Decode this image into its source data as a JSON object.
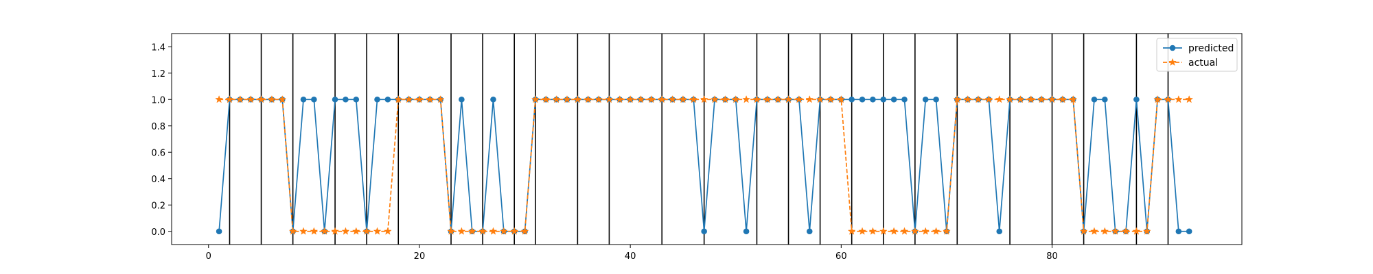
{
  "chart_data": {
    "type": "line",
    "title": "",
    "xlabel": "",
    "ylabel": "",
    "xlim": [
      -3.5,
      98
    ],
    "ylim": [
      -0.1,
      1.5
    ],
    "xticks": [
      0,
      20,
      40,
      60,
      80
    ],
    "xtick_labels": [
      "0",
      "20",
      "40",
      "60",
      "80"
    ],
    "yticks": [
      0.0,
      0.2,
      0.4,
      0.6,
      0.8,
      1.0,
      1.2,
      1.4
    ],
    "ytick_labels": [
      "0.0",
      "0.2",
      "0.4",
      "0.6",
      "0.8",
      "1.0",
      "1.2",
      "1.4"
    ],
    "grid": false,
    "legend_position": "top-right",
    "x": [
      1,
      2,
      3,
      4,
      5,
      6,
      7,
      8,
      9,
      10,
      11,
      12,
      13,
      14,
      15,
      16,
      17,
      18,
      19,
      20,
      21,
      22,
      23,
      24,
      25,
      26,
      27,
      28,
      29,
      30,
      31,
      32,
      33,
      34,
      35,
      36,
      37,
      38,
      39,
      40,
      41,
      42,
      43,
      44,
      45,
      46,
      47,
      48,
      49,
      50,
      51,
      52,
      53,
      54,
      55,
      56,
      57,
      58,
      59,
      60,
      61,
      62,
      63,
      64,
      65,
      66,
      67,
      68,
      69,
      70,
      71,
      72,
      73,
      74,
      75,
      76,
      77,
      78,
      79,
      80,
      81,
      82,
      83,
      84,
      85,
      86,
      87,
      88,
      89,
      90,
      91,
      92,
      93
    ],
    "series": [
      {
        "name": "predicted",
        "color": "#1f77b4",
        "marker": "circle",
        "linestyle": "solid",
        "values": [
          0,
          1,
          1,
          1,
          1,
          1,
          1,
          0,
          1,
          1,
          0,
          1,
          1,
          1,
          0,
          1,
          1,
          1,
          1,
          1,
          1,
          1,
          0,
          1,
          0,
          0,
          1,
          0,
          0,
          0,
          1,
          1,
          1,
          1,
          1,
          1,
          1,
          1,
          1,
          1,
          1,
          1,
          1,
          1,
          1,
          1,
          0,
          1,
          1,
          1,
          0,
          1,
          1,
          1,
          1,
          1,
          0,
          1,
          1,
          1,
          1,
          1,
          1,
          1,
          1,
          1,
          0,
          1,
          1,
          0,
          1,
          1,
          1,
          1,
          0,
          1,
          1,
          1,
          1,
          1,
          1,
          1,
          0,
          1,
          1,
          0,
          0,
          1,
          0,
          1,
          1,
          0,
          0
        ]
      },
      {
        "name": "actual",
        "color": "#ff7f0e",
        "marker": "star",
        "linestyle": "dashed",
        "values": [
          1,
          1,
          1,
          1,
          1,
          1,
          1,
          0,
          0,
          0,
          0,
          0,
          0,
          0,
          0,
          0,
          0,
          1,
          1,
          1,
          1,
          1,
          0,
          0,
          0,
          0,
          0,
          0,
          0,
          0,
          1,
          1,
          1,
          1,
          1,
          1,
          1,
          1,
          1,
          1,
          1,
          1,
          1,
          1,
          1,
          1,
          1,
          1,
          1,
          1,
          1,
          1,
          1,
          1,
          1,
          1,
          1,
          1,
          1,
          1,
          0,
          0,
          0,
          0,
          0,
          0,
          0,
          0,
          0,
          0,
          1,
          1,
          1,
          1,
          1,
          1,
          1,
          1,
          1,
          1,
          1,
          1,
          0,
          0,
          0,
          0,
          0,
          0,
          0,
          1,
          1,
          1,
          1
        ]
      }
    ],
    "vertical_lines": [
      2,
      5,
      8,
      12,
      15,
      18,
      23,
      26,
      29,
      31,
      35,
      38,
      43,
      47,
      52,
      55,
      58,
      61,
      64,
      67,
      71,
      76,
      80,
      83,
      88,
      91
    ]
  }
}
